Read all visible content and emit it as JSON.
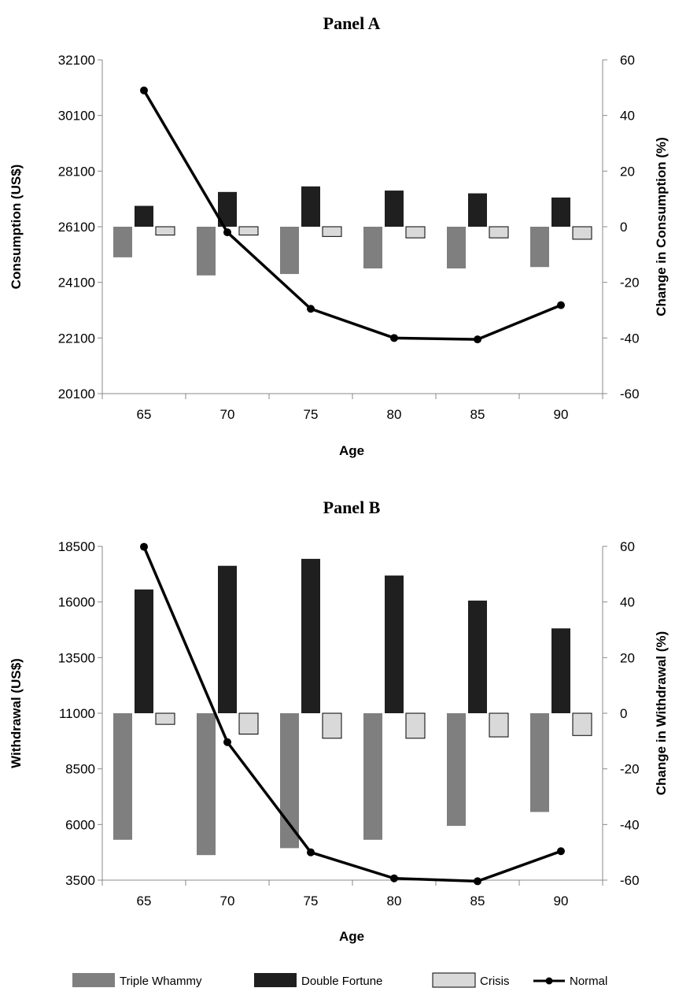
{
  "colors": {
    "triple_whammy": "#7f7f7f",
    "double_fortune": "#1f1f1f",
    "crisis": "#d9d9d9",
    "crisis_border": "#000000",
    "normal": "#000000",
    "axis": "#888888"
  },
  "legend": {
    "items": [
      {
        "label": "Triple Whammy",
        "kind": "bar",
        "color_key": "triple_whammy"
      },
      {
        "label": "Double Fortune",
        "kind": "bar",
        "color_key": "double_fortune"
      },
      {
        "label": "Crisis",
        "kind": "bar",
        "color_key": "crisis"
      },
      {
        "label": "Normal",
        "kind": "line",
        "color_key": "normal"
      }
    ]
  },
  "chart_data": [
    {
      "type": "bar",
      "title": "Panel A",
      "xlabel": "Age",
      "ylabel": "Consumption (US$)",
      "y2label": "Change in Consumption (%)",
      "categories": [
        "65",
        "70",
        "75",
        "80",
        "85",
        "90"
      ],
      "ylim": [
        20100,
        32100
      ],
      "yticks": [
        20100,
        22100,
        24100,
        26100,
        28100,
        30100,
        32100
      ],
      "y2lim": [
        -60,
        60
      ],
      "y2ticks": [
        -60,
        -40,
        -20,
        0,
        20,
        40,
        60
      ],
      "grid": false,
      "series": [
        {
          "name": "Triple Whammy",
          "type": "bar",
          "axis": "right",
          "values": [
            -11,
            -17.5,
            -17,
            -15,
            -15,
            -14.5
          ]
        },
        {
          "name": "Double Fortune",
          "type": "bar",
          "axis": "right",
          "values": [
            7.5,
            12.5,
            14.5,
            13,
            12,
            10.5
          ]
        },
        {
          "name": "Crisis",
          "type": "bar",
          "axis": "right",
          "values": [
            -3,
            -3,
            -3.5,
            -4,
            -4,
            -4.5
          ]
        },
        {
          "name": "Normal",
          "type": "line",
          "axis": "left",
          "values": [
            31000,
            25900,
            23150,
            22100,
            22050,
            23280
          ]
        }
      ]
    },
    {
      "type": "bar",
      "title": "Panel B",
      "xlabel": "Age",
      "ylabel": "Withdrawal (US$)",
      "y2label": "Change in Withdrawal (%)",
      "categories": [
        "65",
        "70",
        "75",
        "80",
        "85",
        "90"
      ],
      "ylim": [
        3500,
        18500
      ],
      "yticks": [
        3500,
        6000,
        8500,
        11000,
        13500,
        16000,
        18500
      ],
      "y2lim": [
        -60,
        60
      ],
      "y2ticks": [
        -60,
        -40,
        -20,
        0,
        20,
        40,
        60
      ],
      "grid": false,
      "series": [
        {
          "name": "Triple Whammy",
          "type": "bar",
          "axis": "right",
          "values": [
            -45.5,
            -51,
            -48.5,
            -45.5,
            -40.5,
            -35.5
          ]
        },
        {
          "name": "Double Fortune",
          "type": "bar",
          "axis": "right",
          "values": [
            44.5,
            53,
            55.5,
            49.5,
            40.5,
            30.5
          ]
        },
        {
          "name": "Crisis",
          "type": "bar",
          "axis": "right",
          "values": [
            -4,
            -7.5,
            -9,
            -9,
            -8.5,
            -8
          ]
        },
        {
          "name": "Normal",
          "type": "line",
          "axis": "left",
          "values": [
            18480,
            9700,
            4750,
            3580,
            3450,
            4800
          ]
        }
      ]
    }
  ]
}
